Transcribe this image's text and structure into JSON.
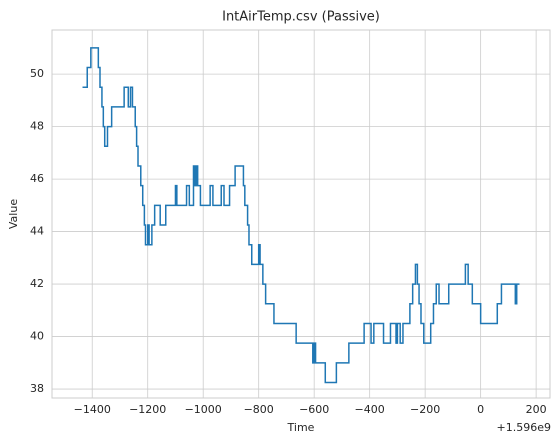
{
  "chart_data": {
    "type": "line",
    "title": "IntAirTemp.csv (Passive)",
    "x_label": "Time",
    "y_label": "Value",
    "x_offset_label": "+1.596e9",
    "drawstyle": "steps-post",
    "grid": true,
    "x": [
      -1435,
      -1418,
      -1405,
      -1378,
      -1372,
      -1365,
      -1360,
      -1355,
      -1345,
      -1330,
      -1285,
      -1270,
      -1262,
      -1255,
      -1245,
      -1240,
      -1235,
      -1225,
      -1218,
      -1212,
      -1208,
      -1200,
      -1195,
      -1185,
      -1175,
      -1155,
      -1135,
      -1100,
      -1095,
      -1060,
      -1050,
      -1035,
      -1030,
      -1025,
      -1020,
      -1010,
      -975,
      -965,
      -935,
      -925,
      -905,
      -885,
      -855,
      -850,
      -840,
      -835,
      -825,
      -800,
      -795,
      -785,
      -775,
      -745,
      -665,
      -605,
      -600,
      -595,
      -560,
      -520,
      -475,
      -420,
      -395,
      -385,
      -350,
      -325,
      -305,
      -300,
      -290,
      -280,
      -255,
      -245,
      -235,
      -228,
      -222,
      -215,
      -205,
      -180,
      -170,
      -160,
      -150,
      -115,
      -55,
      -45,
      -30,
      0,
      60,
      75,
      125,
      130,
      140
    ],
    "series": [
      {
        "name": "IntAirTemp",
        "color": "#1f77b4",
        "values": [
          49.5,
          50.25,
          51,
          50.25,
          49.5,
          48.75,
          48,
          47.25,
          48,
          48.75,
          49.5,
          48.75,
          49.5,
          48.75,
          48,
          47.25,
          46.5,
          45.75,
          45,
          44.25,
          43.5,
          44.25,
          43.5,
          44.25,
          45,
          44.25,
          45,
          45.75,
          45,
          45.75,
          45,
          46.5,
          45.75,
          46.5,
          45.75,
          45,
          45.75,
          45,
          45.75,
          45,
          45.75,
          46.5,
          45.75,
          45,
          44.25,
          43.5,
          42.75,
          43.5,
          42.75,
          42,
          41.25,
          40.5,
          39.75,
          39,
          39.75,
          39,
          38.25,
          39,
          39.75,
          40.5,
          39.75,
          40.5,
          39.75,
          40.5,
          39.75,
          40.5,
          39.75,
          40.5,
          41.25,
          42,
          42.75,
          42,
          41.25,
          40.5,
          39.75,
          40.5,
          41.25,
          42,
          41.25,
          42,
          42.75,
          42,
          41.25,
          40.5,
          41.25,
          42,
          41.25,
          42,
          42
        ]
      }
    ],
    "xlim": [
      -1545,
      250
    ],
    "ylim": [
      37.66,
      51.68
    ],
    "xticks": [
      {
        "value": -1400,
        "label": "−1400"
      },
      {
        "value": -1200,
        "label": "−1200"
      },
      {
        "value": -1000,
        "label": "−1000"
      },
      {
        "value": -800,
        "label": "−800"
      },
      {
        "value": -600,
        "label": "−600"
      },
      {
        "value": -400,
        "label": "−400"
      },
      {
        "value": -200,
        "label": "−200"
      },
      0,
      200
    ],
    "yticks": [
      38,
      40,
      42,
      44,
      46,
      48,
      50
    ]
  }
}
